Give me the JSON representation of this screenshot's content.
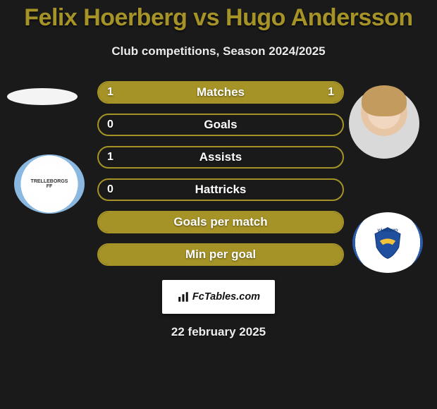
{
  "title_color": "#a69327",
  "title": "Felix Hoerberg vs Hugo Andersson",
  "subtitle": "Club competitions, Season 2024/2025",
  "bar_border_color": "#a69327",
  "bar_fill_color": "#a69327",
  "bar_empty_color": "rgba(0,0,0,0)",
  "bars": [
    {
      "label": "Matches",
      "left": "1",
      "right": "1",
      "left_pct": 50,
      "right_pct": 50
    },
    {
      "label": "Goals",
      "left": "0",
      "right": "",
      "left_pct": 0,
      "right_pct": 0
    },
    {
      "label": "Assists",
      "left": "1",
      "right": "",
      "left_pct": 0,
      "right_pct": 0
    },
    {
      "label": "Hattricks",
      "left": "0",
      "right": "",
      "left_pct": 0,
      "right_pct": 0
    },
    {
      "label": "Goals per match",
      "left": "",
      "right": "",
      "left_pct": 100,
      "right_pct": 0,
      "full": true
    },
    {
      "label": "Min per goal",
      "left": "",
      "right": "",
      "left_pct": 100,
      "right_pct": 0,
      "full": true
    }
  ],
  "left_club_text": "TRELLEBORGS FF",
  "right_club_text": "VÄRNAMO",
  "branding_text": "FcTables.com",
  "date_text": "22 february 2025"
}
